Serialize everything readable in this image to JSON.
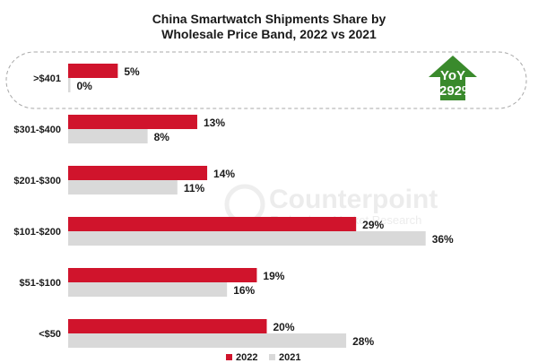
{
  "chart_data": {
    "type": "bar",
    "orientation": "horizontal",
    "title_lines": [
      "China Smartwatch Shipments Share by",
      "Wholesale Price Band, 2022 vs 2021"
    ],
    "categories": [
      ">$401",
      "$301-$400",
      "$201-$300",
      "$101-$200",
      "$51-$100",
      "<$50"
    ],
    "series": [
      {
        "name": "2022",
        "color": "#d0142c",
        "values": [
          5,
          13,
          14,
          29,
          19,
          20
        ],
        "labels": [
          "5%",
          "13%",
          "14%",
          "29%",
          "19%",
          "20%"
        ]
      },
      {
        "name": "2021",
        "color": "#d9d9d9",
        "values": [
          0,
          8,
          11,
          36,
          16,
          28
        ],
        "labels": [
          "0%",
          "8%",
          "11%",
          "36%",
          "16%",
          "28%"
        ]
      }
    ],
    "xlim": [
      0,
      40
    ],
    "grid": false,
    "legend_position": "bottom",
    "highlight": {
      "category": ">$401",
      "badge_lines": [
        "YoY",
        "1292%"
      ],
      "badge_color": "#3a8a2c"
    }
  },
  "watermark": {
    "brand": "Counterpoint",
    "tagline": "Technology Market Research"
  }
}
